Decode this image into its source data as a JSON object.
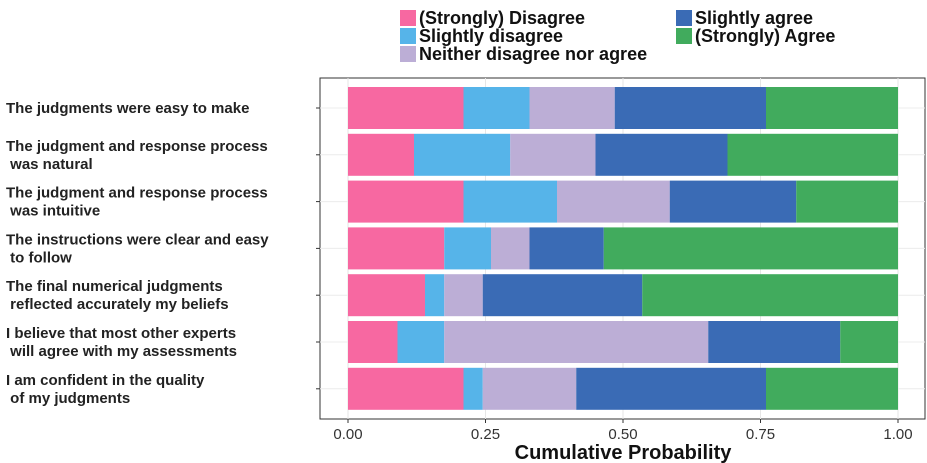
{
  "chart_data": {
    "type": "bar",
    "orientation": "horizontal",
    "stacked": true,
    "xlabel": "Cumulative Probability",
    "xlim": [
      0,
      1
    ],
    "x_ticks": [
      "0.00",
      "0.25",
      "0.50",
      "0.75",
      "1.00"
    ],
    "grid": true,
    "legend_position": "top",
    "categories": [
      "The judgments were easy to make",
      "The judgment and response process\n was natural",
      "The judgment and response process\n was intuitive",
      "The instructions were clear and easy\n to follow",
      "The final numerical judgments\n reflected accurately my beliefs",
      "I believe that most other experts\n will agree with my assessments",
      "I am confident in the quality\n of my judgments"
    ],
    "series": [
      {
        "name": "(Strongly) Disagree",
        "color": "#F768A1",
        "values": [
          0.21,
          0.12,
          0.21,
          0.175,
          0.14,
          0.09,
          0.21
        ]
      },
      {
        "name": "Slightly disagree",
        "color": "#56B4E9",
        "values": [
          0.12,
          0.175,
          0.17,
          0.085,
          0.035,
          0.085,
          0.035
        ]
      },
      {
        "name": "Neither disagree nor agree",
        "color": "#BCAED6",
        "values": [
          0.155,
          0.155,
          0.205,
          0.07,
          0.07,
          0.48,
          0.17
        ]
      },
      {
        "name": "Slightly agree",
        "color": "#3A6BB5",
        "values": [
          0.275,
          0.24,
          0.23,
          0.135,
          0.29,
          0.24,
          0.345
        ]
      },
      {
        "name": "(Strongly) Agree",
        "color": "#41AB5D",
        "values": [
          0.24,
          0.31,
          0.185,
          0.535,
          0.465,
          0.105,
          0.24
        ]
      }
    ]
  }
}
